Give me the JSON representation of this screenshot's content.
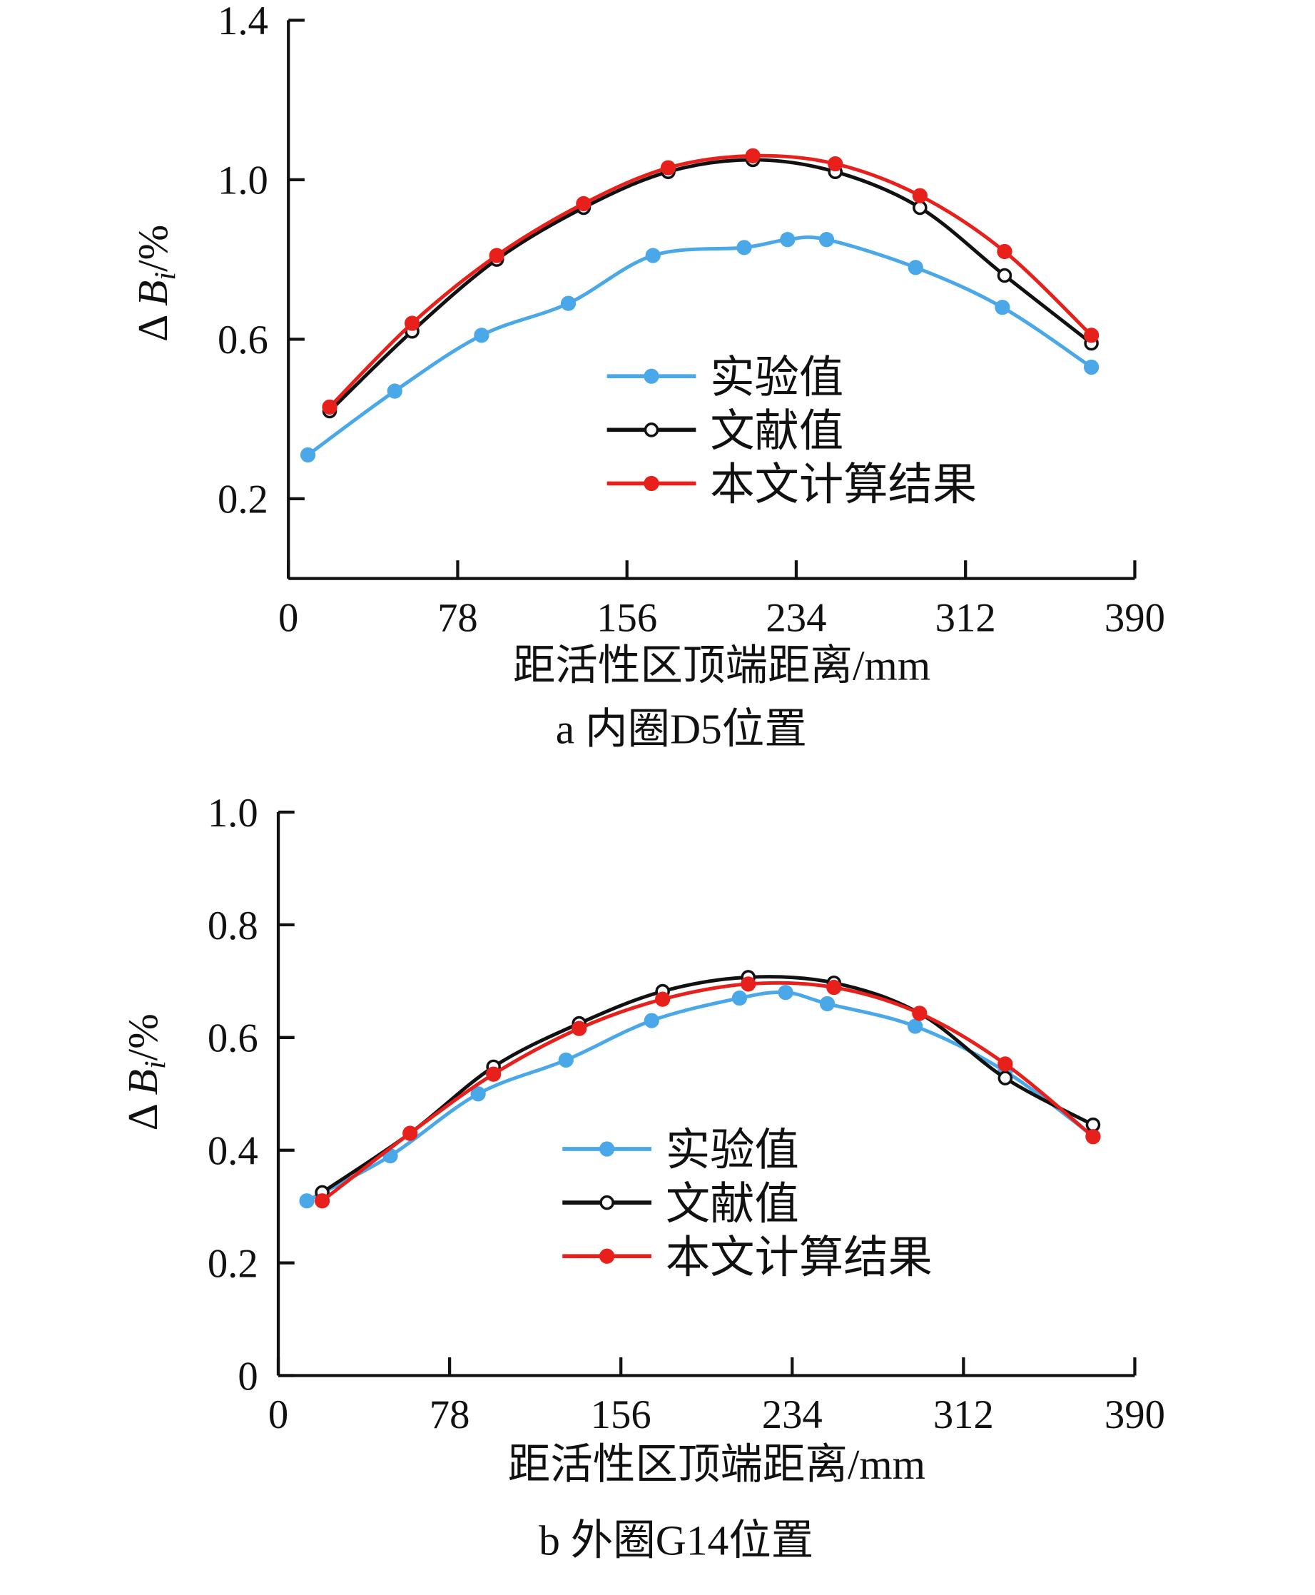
{
  "chart_data": [
    {
      "type": "line",
      "caption": "a  内圈D5位置",
      "xlabel": "距活性区顶端距离/mm",
      "ylabel": {
        "prefix": "Δ ",
        "var": "B",
        "sub": "i",
        "suffix": "/%"
      },
      "xlim": [
        0,
        390
      ],
      "ylim": [
        0,
        1.4
      ],
      "xticks": [
        0,
        78,
        156,
        234,
        312,
        390
      ],
      "yticks": [
        0.2,
        0.6,
        1.0,
        1.4
      ],
      "ytick_labels": [
        "0.2",
        "0.6",
        "1.0",
        "1.4"
      ],
      "legend_position": "center",
      "series": [
        {
          "name": "实验值",
          "color": "#4aa8e8",
          "marker": "filled",
          "x": [
            9,
            49,
            89,
            129,
            168,
            210,
            230,
            248,
            289,
            329,
            370
          ],
          "y": [
            0.31,
            0.47,
            0.61,
            0.69,
            0.81,
            0.83,
            0.85,
            0.85,
            0.78,
            0.68,
            0.53
          ]
        },
        {
          "name": "文献值",
          "color": "#111111",
          "marker": "open",
          "x": [
            19,
            57,
            96,
            136,
            175,
            214,
            252,
            291,
            330,
            370
          ],
          "y": [
            0.42,
            0.62,
            0.8,
            0.93,
            1.02,
            1.05,
            1.02,
            0.93,
            0.76,
            0.59
          ]
        },
        {
          "name": "本文计算结果",
          "color": "#e8201c",
          "marker": "filled",
          "x": [
            19,
            57,
            96,
            136,
            175,
            214,
            252,
            291,
            330,
            370
          ],
          "y": [
            0.43,
            0.64,
            0.81,
            0.94,
            1.03,
            1.06,
            1.04,
            0.96,
            0.82,
            0.61
          ]
        }
      ]
    },
    {
      "type": "line",
      "caption": "b  外圈G14位置",
      "xlabel": "距活性区顶端距离/mm",
      "ylabel": {
        "prefix": "Δ ",
        "var": "B",
        "sub": "i",
        "suffix": "/%"
      },
      "xlim": [
        0,
        390
      ],
      "ylim": [
        0,
        1.0
      ],
      "xticks": [
        0,
        78,
        156,
        234,
        312,
        390
      ],
      "yticks": [
        0,
        0.2,
        0.4,
        0.6,
        0.8,
        1.0
      ],
      "ytick_labels": [
        "0",
        "0.2",
        "0.4",
        "0.6",
        "0.8",
        "1.0"
      ],
      "legend_position": "center",
      "series": [
        {
          "name": "实验值",
          "color": "#4aa8e8",
          "marker": "filled",
          "x": [
            13,
            51,
            91,
            131,
            170,
            210,
            231,
            250,
            290,
            331,
            371
          ],
          "y": [
            0.31,
            0.39,
            0.5,
            0.56,
            0.63,
            0.67,
            0.68,
            0.66,
            0.62,
            0.54,
            0.425
          ]
        },
        {
          "name": "文献值",
          "color": "#111111",
          "marker": "open",
          "x": [
            20,
            60,
            98,
            137,
            175,
            214,
            253,
            292,
            331,
            371
          ],
          "y": [
            0.325,
            0.43,
            0.548,
            0.625,
            0.682,
            0.707,
            0.697,
            0.643,
            0.528,
            0.445
          ]
        },
        {
          "name": "本文计算结果",
          "color": "#e8201c",
          "marker": "filled",
          "x": [
            20,
            60,
            98,
            137,
            175,
            214,
            253,
            292,
            331,
            371
          ],
          "y": [
            0.31,
            0.43,
            0.535,
            0.616,
            0.668,
            0.695,
            0.689,
            0.643,
            0.553,
            0.424
          ]
        }
      ]
    }
  ]
}
